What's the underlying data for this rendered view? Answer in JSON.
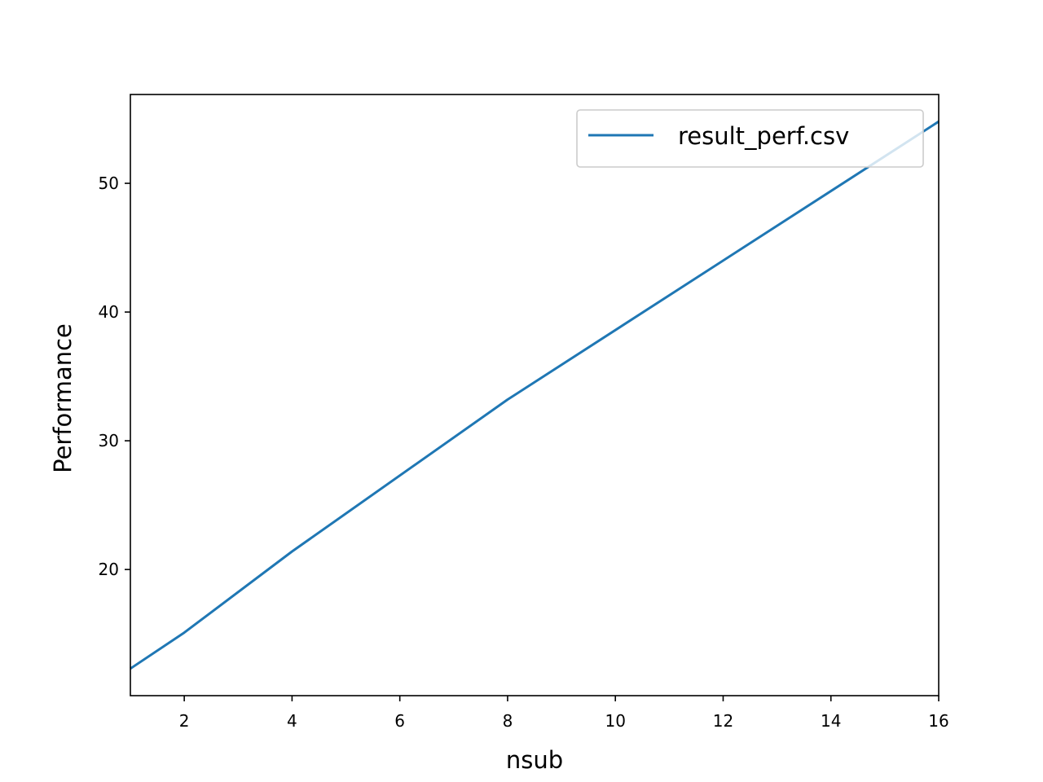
{
  "chart_data": {
    "type": "line",
    "title": "",
    "xlabel": "nsub",
    "ylabel": "Performance",
    "xlim": [
      1,
      16
    ],
    "ylim": [
      10.2,
      56.9
    ],
    "xticks": [
      2,
      4,
      6,
      8,
      10,
      12,
      14,
      16
    ],
    "yticks": [
      20,
      30,
      40,
      50
    ],
    "grid": false,
    "legend_position": "top-right",
    "series": [
      {
        "name": "result_perf.csv",
        "color": "#1f77b4",
        "x": [
          1,
          2,
          4,
          8,
          16
        ],
        "y": [
          12.3,
          15.1,
          21.4,
          33.2,
          54.8
        ]
      }
    ]
  }
}
